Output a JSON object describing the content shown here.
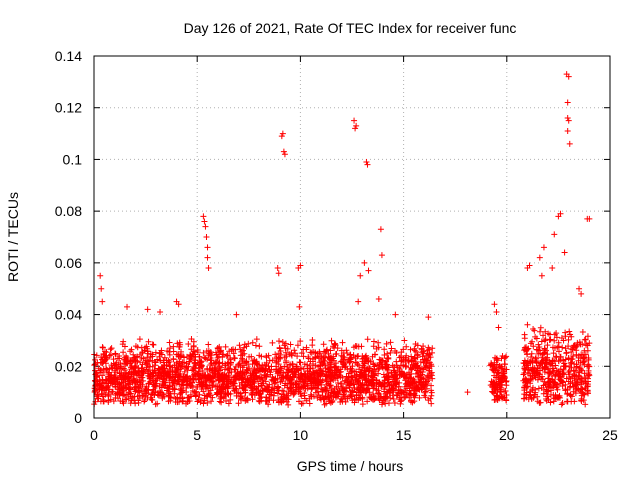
{
  "chart_data": {
    "type": "scatter",
    "title": "Day 126 of 2021, Rate Of TEC Index for receiver func",
    "xlabel": "GPS time / hours",
    "ylabel": "ROTI / TECUs",
    "xlim": [
      0,
      25
    ],
    "ylim": [
      0,
      0.14
    ],
    "xticks": [
      "0",
      "5",
      "10",
      "15",
      "20",
      "25"
    ],
    "yticks": [
      "0",
      "0.02",
      "0.04",
      "0.06",
      "0.08",
      "0.1",
      "0.12",
      "0.14"
    ],
    "grid": true,
    "marker": "+",
    "color": "#ff0000",
    "series": [
      {
        "dense_bands": [
          {
            "x": [
              0,
              16.4
            ],
            "y": [
              0.005,
              0.03
            ]
          },
          {
            "x": [
              19.2,
              20.0
            ],
            "y": [
              0.005,
              0.025
            ]
          },
          {
            "x": [
              20.8,
              24.0
            ],
            "y": [
              0.005,
              0.035
            ]
          }
        ],
        "points": [
          {
            "x": 0.3,
            "y": 0.055
          },
          {
            "x": 0.35,
            "y": 0.05
          },
          {
            "x": 0.4,
            "y": 0.045
          },
          {
            "x": 1.6,
            "y": 0.043
          },
          {
            "x": 2.6,
            "y": 0.042
          },
          {
            "x": 3.2,
            "y": 0.041
          },
          {
            "x": 4.0,
            "y": 0.045
          },
          {
            "x": 4.1,
            "y": 0.044
          },
          {
            "x": 5.3,
            "y": 0.078
          },
          {
            "x": 5.35,
            "y": 0.076
          },
          {
            "x": 5.4,
            "y": 0.074
          },
          {
            "x": 5.45,
            "y": 0.07
          },
          {
            "x": 5.5,
            "y": 0.066
          },
          {
            "x": 5.5,
            "y": 0.062
          },
          {
            "x": 5.55,
            "y": 0.058
          },
          {
            "x": 6.9,
            "y": 0.04
          },
          {
            "x": 8.9,
            "y": 0.058
          },
          {
            "x": 8.95,
            "y": 0.056
          },
          {
            "x": 9.1,
            "y": 0.109
          },
          {
            "x": 9.15,
            "y": 0.11
          },
          {
            "x": 9.2,
            "y": 0.103
          },
          {
            "x": 9.25,
            "y": 0.102
          },
          {
            "x": 9.9,
            "y": 0.058
          },
          {
            "x": 10.0,
            "y": 0.059
          },
          {
            "x": 9.95,
            "y": 0.043
          },
          {
            "x": 12.6,
            "y": 0.115
          },
          {
            "x": 12.65,
            "y": 0.112
          },
          {
            "x": 12.7,
            "y": 0.113
          },
          {
            "x": 12.8,
            "y": 0.045
          },
          {
            "x": 12.9,
            "y": 0.055
          },
          {
            "x": 13.2,
            "y": 0.099
          },
          {
            "x": 13.25,
            "y": 0.098
          },
          {
            "x": 13.1,
            "y": 0.06
          },
          {
            "x": 13.3,
            "y": 0.057
          },
          {
            "x": 13.9,
            "y": 0.073
          },
          {
            "x": 13.95,
            "y": 0.063
          },
          {
            "x": 13.8,
            "y": 0.046
          },
          {
            "x": 14.6,
            "y": 0.04
          },
          {
            "x": 16.2,
            "y": 0.039
          },
          {
            "x": 18.1,
            "y": 0.01
          },
          {
            "x": 19.4,
            "y": 0.044
          },
          {
            "x": 19.5,
            "y": 0.041
          },
          {
            "x": 19.6,
            "y": 0.035
          },
          {
            "x": 21.0,
            "y": 0.058
          },
          {
            "x": 21.1,
            "y": 0.059
          },
          {
            "x": 21.6,
            "y": 0.062
          },
          {
            "x": 21.8,
            "y": 0.066
          },
          {
            "x": 21.7,
            "y": 0.055
          },
          {
            "x": 22.3,
            "y": 0.071
          },
          {
            "x": 22.5,
            "y": 0.078
          },
          {
            "x": 22.6,
            "y": 0.079
          },
          {
            "x": 22.8,
            "y": 0.064
          },
          {
            "x": 22.2,
            "y": 0.058
          },
          {
            "x": 22.9,
            "y": 0.133
          },
          {
            "x": 23.0,
            "y": 0.132
          },
          {
            "x": 22.95,
            "y": 0.122
          },
          {
            "x": 22.95,
            "y": 0.116
          },
          {
            "x": 23.0,
            "y": 0.115
          },
          {
            "x": 22.95,
            "y": 0.111
          },
          {
            "x": 23.05,
            "y": 0.106
          },
          {
            "x": 23.5,
            "y": 0.05
          },
          {
            "x": 23.6,
            "y": 0.048
          },
          {
            "x": 23.9,
            "y": 0.077
          },
          {
            "x": 24.0,
            "y": 0.077
          }
        ]
      }
    ]
  }
}
